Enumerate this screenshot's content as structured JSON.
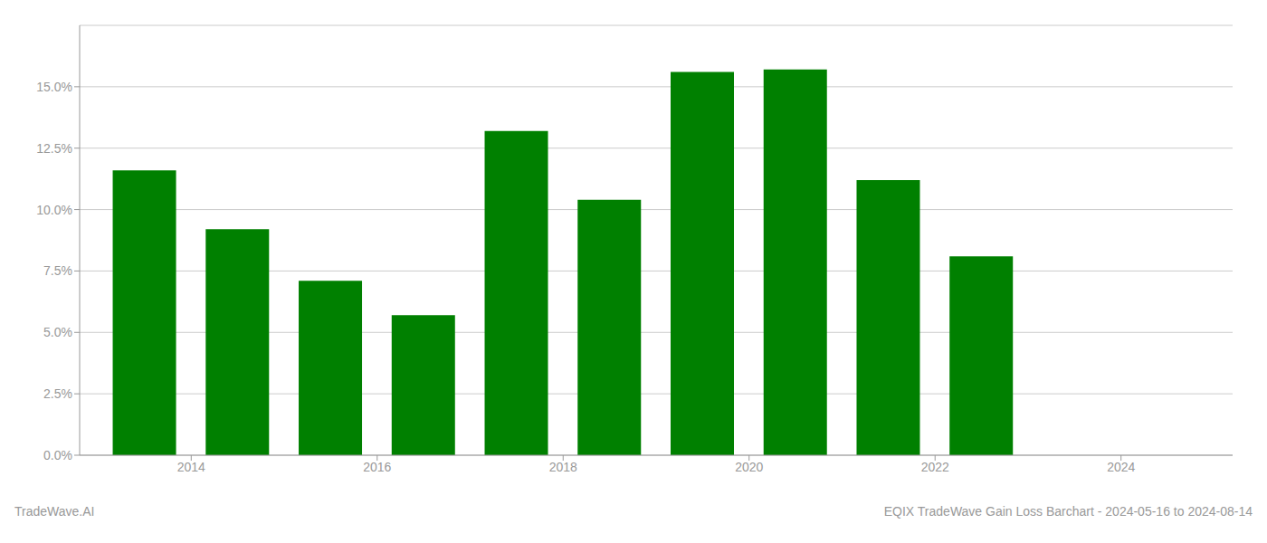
{
  "chart_data": {
    "type": "bar",
    "x": [
      2013,
      2014,
      2015,
      2016,
      2017,
      2018,
      2019,
      2020,
      2021,
      2022
    ],
    "values": [
      0.116,
      0.092,
      0.071,
      0.057,
      0.132,
      0.104,
      0.156,
      0.157,
      0.112,
      0.081
    ],
    "color": "#008000",
    "xlim": [
      2012.3,
      2024.7
    ],
    "xticks": [
      {
        "value": 2013.5,
        "label": "2014"
      },
      {
        "value": 2015.5,
        "label": "2016"
      },
      {
        "value": 2017.5,
        "label": "2018"
      },
      {
        "value": 2019.5,
        "label": "2020"
      },
      {
        "value": 2021.5,
        "label": "2022"
      },
      {
        "value": 2023.5,
        "label": "2024"
      }
    ],
    "ylim": [
      0,
      0.175
    ],
    "yticks": [
      {
        "value": 0.0,
        "label": "0.0%"
      },
      {
        "value": 0.025,
        "label": "2.5%"
      },
      {
        "value": 0.05,
        "label": "5.0%"
      },
      {
        "value": 0.075,
        "label": "7.5%"
      },
      {
        "value": 0.1,
        "label": "10.0%"
      },
      {
        "value": 0.125,
        "label": "12.5%"
      },
      {
        "value": 0.15,
        "label": "15.0%"
      }
    ],
    "grid": true,
    "annotations": [
      "TradeWave.AI",
      "EQIX TradeWave Gain Loss Barchart - 2024-05-16 to 2024-08-14"
    ]
  }
}
